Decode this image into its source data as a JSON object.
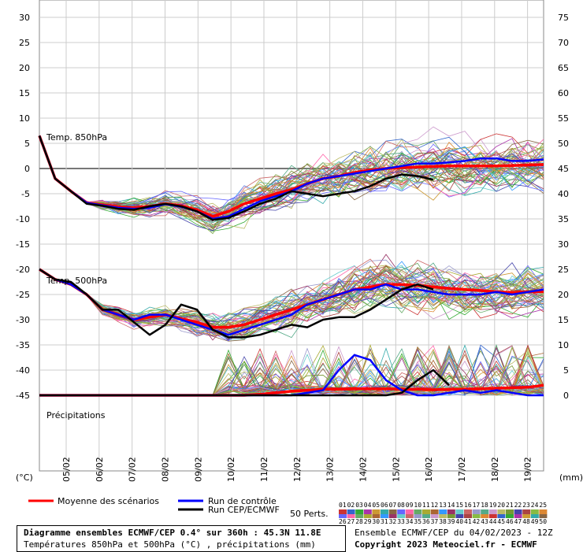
{
  "chart_data": {
    "type": "line",
    "x": [
      "05/02",
      "06/02",
      "07/02",
      "08/02",
      "09/02",
      "10/02",
      "11/02",
      "12/02",
      "13/02",
      "14/02",
      "15/02",
      "16/02",
      "17/02",
      "18/02",
      "19/02"
    ],
    "left_axis": {
      "label": "(°C)",
      "ylim": [
        -60,
        30
      ],
      "ticks": [
        30,
        25,
        20,
        15,
        10,
        5,
        0,
        -5,
        -10,
        -15,
        -20,
        -25,
        -30,
        -35,
        -40,
        -45
      ]
    },
    "right_axis": {
      "label": "(mm)",
      "ticks": [
        75,
        70,
        65,
        60,
        55,
        50,
        45,
        40,
        35,
        30,
        25,
        20,
        15,
        10,
        5,
        0
      ]
    },
    "panels": [
      {
        "label": "Temp. 850hPa"
      },
      {
        "label": "Temp. 500hPa"
      },
      {
        "label": "Précipitations"
      }
    ],
    "series": [
      {
        "name": "Moyenne des scénarios",
        "color": "#ff0000",
        "t850": [
          6.5,
          -2,
          -4.5,
          -6.8,
          -7.2,
          -7.6,
          -7.8,
          -7.5,
          -7.0,
          -7.4,
          -8.2,
          -9.5,
          -8.5,
          -7.0,
          -6.0,
          -5.0,
          -4.2,
          -3.0,
          -2.0,
          -1.5,
          -0.8,
          -0.3,
          0.0,
          0.2,
          0.3,
          0.4,
          0.5,
          0.5,
          0.5,
          0.5,
          0.6,
          0.7,
          0.8
        ],
        "t500": [
          -20,
          -22,
          -23,
          -25,
          -28,
          -29,
          -30,
          -29.5,
          -29,
          -29.8,
          -30.5,
          -31.5,
          -31.5,
          -31,
          -30,
          -29,
          -28,
          -27,
          -26,
          -25,
          -24,
          -23.5,
          -23,
          -23,
          -23.2,
          -23.5,
          -23.8,
          -24,
          -24.2,
          -24.5,
          -24.6,
          -24.5,
          -24.4
        ],
        "precip": [
          0,
          0,
          0,
          0,
          0,
          0,
          0,
          0,
          0,
          0,
          0,
          0,
          0,
          0,
          0.2,
          0.5,
          0.8,
          1,
          1.2,
          1.2,
          1.3,
          1.3,
          1.3,
          1.2,
          1.2,
          1.1,
          1.2,
          1.2,
          1.3,
          1.4,
          1.5,
          1.6,
          2
        ]
      },
      {
        "name": "Run de contrôle",
        "color": "#0000ff",
        "t850": [
          6.5,
          -2,
          -4.5,
          -6.8,
          -7.3,
          -7.8,
          -8,
          -7.8,
          -7.1,
          -7.6,
          -8.5,
          -10,
          -9.5,
          -8,
          -6.5,
          -5.5,
          -4.5,
          -3,
          -2,
          -1.5,
          -1,
          -0.5,
          0,
          0.5,
          1,
          1,
          1.2,
          1.5,
          2,
          2,
          1.5,
          1.5,
          1.8
        ],
        "t500": [
          -20,
          -22,
          -23,
          -25,
          -28,
          -29,
          -30,
          -29,
          -29,
          -30,
          -31,
          -32,
          -33,
          -32,
          -31,
          -30,
          -29,
          -27,
          -26,
          -25,
          -24,
          -24,
          -23,
          -24,
          -24,
          -24.5,
          -25,
          -25,
          -25,
          -24.5,
          -25,
          -24.5,
          -24
        ],
        "precip": [
          0,
          0,
          0,
          0,
          0,
          0,
          0,
          0,
          0,
          0,
          0,
          0,
          0,
          0,
          0,
          0,
          0,
          0.5,
          1,
          5,
          8,
          7,
          3,
          1,
          0,
          0,
          0.5,
          1,
          0.5,
          1,
          0.5,
          0,
          0
        ]
      },
      {
        "name": "Run CEP/ECMWF",
        "color": "#000000",
        "t850": [
          6.5,
          -2,
          -4.5,
          -7.0,
          -7.4,
          -8.0,
          -8.2,
          -7.5,
          -7.0,
          -7.5,
          -8.5,
          -10.2,
          -9.8,
          -8.5,
          -7.0,
          -6.0,
          -4.5,
          -5.0,
          -5.5,
          -5.0,
          -4.5,
          -3.5,
          -2.0,
          -1.2,
          -1.5,
          -2.2
        ],
        "t500": [
          -20,
          -22,
          -22.5,
          -25,
          -28,
          -28,
          -30.5,
          -33,
          -31,
          -27,
          -28,
          -32,
          -33.5,
          -33.5,
          -33,
          -32,
          -31,
          -31.5,
          -30,
          -29.5,
          -29.5,
          -28,
          -26,
          -24,
          -23,
          -24
        ],
        "precip": [
          0,
          0,
          0,
          0,
          0,
          0,
          0,
          0,
          0,
          0,
          0,
          0,
          0,
          0,
          0,
          0,
          0,
          0,
          0,
          0,
          0,
          0,
          0,
          0.5,
          3,
          5,
          2
        ]
      }
    ],
    "perturbations_count": 50
  },
  "legend": {
    "mean": "Moyenne des scénarios",
    "control": "Run de contrôle",
    "cep": "Run CEP/ECMWF",
    "perts": "50 Perts.",
    "pert_row1": [
      "01",
      "02",
      "03",
      "04",
      "05",
      "06",
      "07",
      "08",
      "09",
      "10",
      "11",
      "12",
      "13",
      "14",
      "15",
      "16",
      "17",
      "18",
      "19",
      "20",
      "21",
      "22",
      "23",
      "24",
      "25"
    ],
    "pert_row2": [
      "26",
      "27",
      "28",
      "29",
      "30",
      "31",
      "32",
      "33",
      "34",
      "35",
      "36",
      "37",
      "38",
      "39",
      "40",
      "41",
      "42",
      "43",
      "44",
      "45",
      "46",
      "47",
      "48",
      "49",
      "50"
    ]
  },
  "footer": {
    "title": "Diagramme ensembles ECMWF/CEP 0.4° sur 360h : 45.3N 11.8E",
    "subtitle": "Températures 850hPa et 500hPa (°C) , précipitations (mm)",
    "run_info": "Ensemble ECMWF/CEP du 04/02/2023 - 12Z",
    "copyright": "Copyright 2023 Meteociel.fr - ECMWF"
  }
}
